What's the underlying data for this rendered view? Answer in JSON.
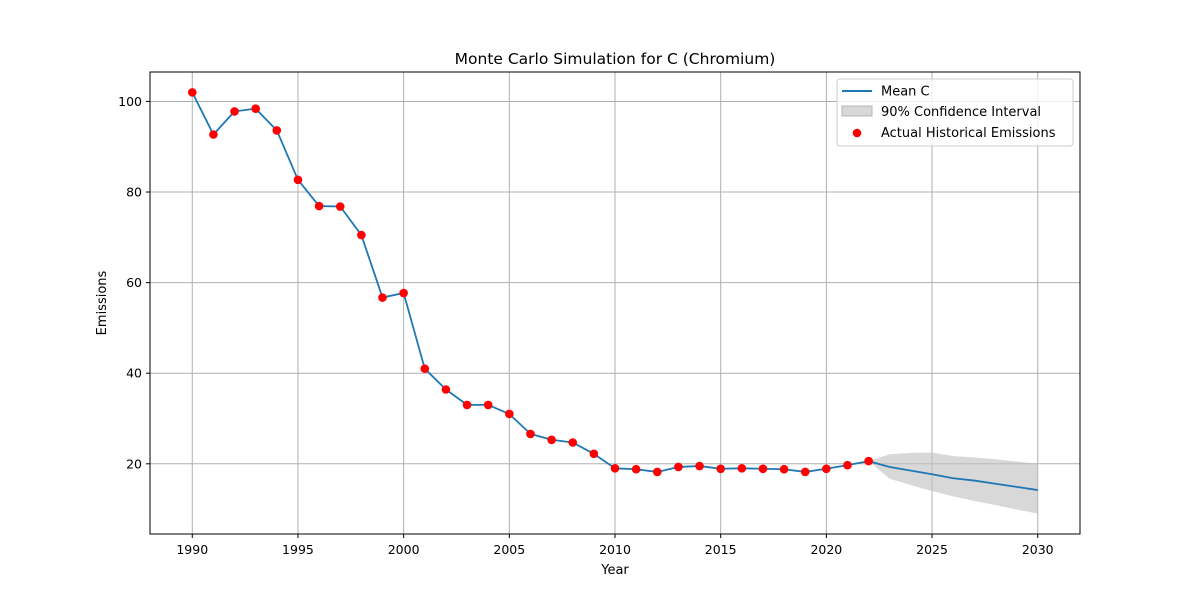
{
  "chart_data": {
    "type": "line",
    "title": "Monte Carlo Simulation for C (Chromium)",
    "xlabel": "Year",
    "ylabel": "Emissions",
    "xlim": [
      1988,
      2032
    ],
    "ylim": [
      4.5,
      106.5
    ],
    "xticks": [
      1990,
      1995,
      2000,
      2005,
      2010,
      2015,
      2020,
      2025,
      2030
    ],
    "yticks": [
      20,
      40,
      60,
      80,
      100
    ],
    "grid": true,
    "legend_position": "top-right",
    "series": [
      {
        "name": "Mean C",
        "kind": "line",
        "color": "#1f77b4",
        "x": [
          1990,
          1991,
          1992,
          1993,
          1994,
          1995,
          1996,
          1997,
          1998,
          1999,
          2000,
          2001,
          2002,
          2003,
          2004,
          2005,
          2006,
          2007,
          2008,
          2009,
          2010,
          2011,
          2012,
          2013,
          2014,
          2015,
          2016,
          2017,
          2018,
          2019,
          2020,
          2021,
          2022,
          2023,
          2024,
          2025,
          2026,
          2027,
          2028,
          2029,
          2030
        ],
        "y": [
          102.0,
          92.7,
          97.8,
          98.4,
          93.6,
          82.7,
          76.9,
          76.8,
          70.5,
          56.7,
          57.7,
          41.0,
          36.4,
          33.0,
          33.0,
          31.0,
          26.6,
          25.3,
          24.7,
          22.2,
          19.0,
          18.8,
          18.2,
          19.3,
          19.5,
          18.9,
          19.0,
          18.9,
          18.8,
          18.2,
          18.9,
          19.7,
          20.6,
          19.3,
          18.5,
          17.7,
          16.8,
          16.3,
          15.6,
          14.9,
          14.2
        ]
      },
      {
        "name": "90% Confidence Interval",
        "kind": "band",
        "color": "#c0c0c0",
        "x": [
          2022,
          2023,
          2024,
          2025,
          2026,
          2027,
          2028,
          2029,
          2030
        ],
        "lower": [
          20.6,
          16.7,
          15.3,
          14.0,
          12.8,
          11.8,
          10.9,
          9.9,
          9.0
        ],
        "upper": [
          20.6,
          22.1,
          22.4,
          22.5,
          21.7,
          21.4,
          21.0,
          20.5,
          20.0
        ]
      },
      {
        "name": "Actual Historical Emissions",
        "kind": "scatter",
        "color": "#ff0000",
        "x": [
          1990,
          1991,
          1992,
          1993,
          1994,
          1995,
          1996,
          1997,
          1998,
          1999,
          2000,
          2001,
          2002,
          2003,
          2004,
          2005,
          2006,
          2007,
          2008,
          2009,
          2010,
          2011,
          2012,
          2013,
          2014,
          2015,
          2016,
          2017,
          2018,
          2019,
          2020,
          2021,
          2022
        ],
        "y": [
          102.0,
          92.7,
          97.8,
          98.4,
          93.6,
          82.7,
          76.9,
          76.8,
          70.5,
          56.7,
          57.7,
          41.0,
          36.4,
          33.0,
          33.0,
          31.0,
          26.6,
          25.3,
          24.7,
          22.2,
          19.0,
          18.8,
          18.2,
          19.3,
          19.5,
          18.9,
          19.0,
          18.9,
          18.8,
          18.2,
          18.9,
          19.7,
          20.6
        ]
      }
    ]
  }
}
